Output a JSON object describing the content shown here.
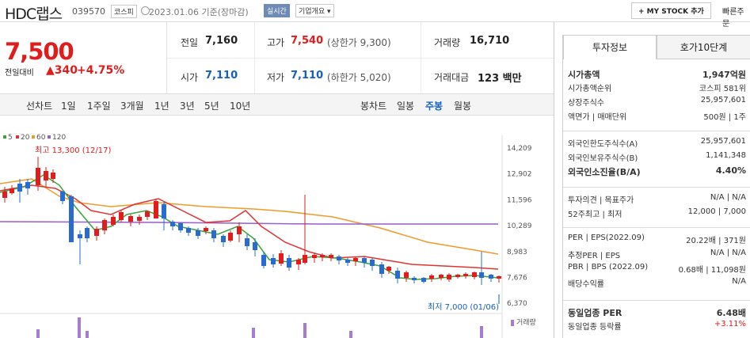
{
  "header": {
    "name": "HDC랩스",
    "code": "039570",
    "market": "코스피",
    "date": "2023.01.06 기준(장마감)",
    "live": "실시간",
    "company_info": "기업개요",
    "mystock": "+ MY STOCK 추가",
    "quick": "빠른주문"
  },
  "price": {
    "current": "7,500",
    "diff_label": "전일대비",
    "diff": "340",
    "diff_pct": "+4.75%",
    "prev_label": "전일",
    "prev": "7,160",
    "high_label": "고가",
    "high": "7,540",
    "high_limit": "(상한가 9,300)",
    "vol_label": "거래량",
    "vol": "16,710",
    "open_label": "시가",
    "open": "7,110",
    "low_label": "저가",
    "low": "7,110",
    "low_limit": "(하한가 5,020)",
    "amt_label": "거래대금",
    "amt": "123 백만"
  },
  "tabs": {
    "line": "선차트",
    "d1": "1일",
    "w1": "1주일",
    "m3": "3개월",
    "y1": "1년",
    "y3": "3년",
    "y5": "5년",
    "y10": "10년",
    "candle": "봉차트",
    "day": "일봉",
    "week": "주봉",
    "month": "월봉"
  },
  "side": {
    "tab1": "투자정보",
    "tab2": "호가10단계",
    "rows": [
      {
        "l": "시가총액",
        "r": "1,947억원",
        "b": true
      },
      {
        "l": "시가총액순위",
        "r": "코스피 581위"
      },
      {
        "l": "상장주식수",
        "r": "25,957,601"
      },
      {
        "l": "액면가 | 매매단위",
        "r": "500원 | 1주"
      },
      {
        "l": "외국인한도주식수(A)",
        "r": "25,957,601"
      },
      {
        "l": "외국인보유주식수(B)",
        "r": "1,141,348"
      },
      {
        "l": "외국인소진율(B/A)",
        "r": "4.40%",
        "b": true
      },
      {
        "l": "투자의견 | 목표주가",
        "r": "N/A | N/A"
      },
      {
        "l": "52주최고 | 최저",
        "r": "12,000 | 7,000"
      },
      {
        "l": "PER | EPS(2022.09)",
        "r": "20.22배 | 371원"
      },
      {
        "l": "추정PER | EPS",
        "r": "N/A | N/A"
      },
      {
        "l": "PBR | BPS (2022.09)",
        "r": "0.68배 | 11,098원"
      },
      {
        "l": "배당수익률",
        "r": "N/A"
      },
      {
        "l": "동일업종 PER",
        "r": "6.48배",
        "b": true
      },
      {
        "l": "동일업종 등락률",
        "r": "+3.11%",
        "red": true
      }
    ]
  },
  "chart_data": {
    "type": "candlestick",
    "legend": [
      "5",
      "20",
      "60",
      "120"
    ],
    "legend_colors": [
      "#3aa43a",
      "#e03333",
      "#f09a2a",
      "#9a5ccf"
    ],
    "y_ticks": [
      "14,209",
      "12,902",
      "11,596",
      "10,289",
      "8,983",
      "7,676",
      "6,370"
    ],
    "high_note": "최고 13,300 (12/17)",
    "low_note": "최저 7,000 (01/06)",
    "volume_label": "거래량"
  }
}
